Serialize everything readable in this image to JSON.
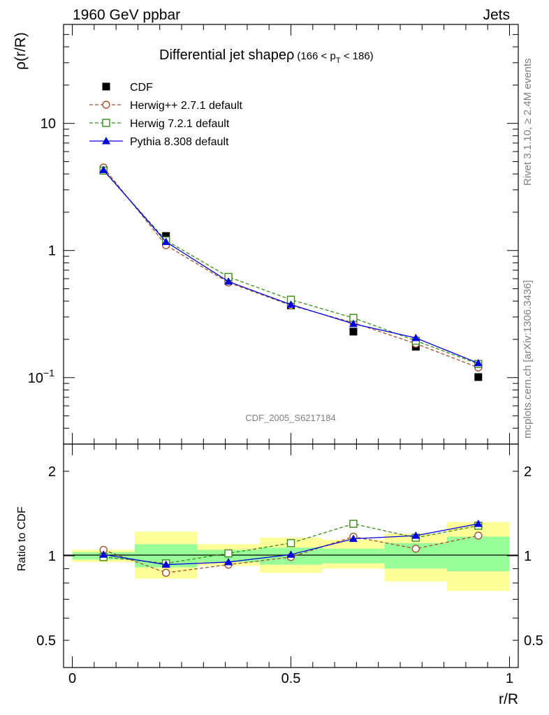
{
  "header": {
    "left": "1960 GeV ppbar",
    "right": "Jets"
  },
  "side_text": {
    "rivet": "Rivet 3.1.10, ≥ 2.4M events",
    "mcplots": "mcplots.cern.ch [arXiv:1306.3436]"
  },
  "chart_data": [
    {
      "type": "line",
      "title": "Differential jet shapeρ",
      "title_suffix": "(166 < p",
      "title_sub": "T",
      "title_suffix_end": " < 186)",
      "ylabel": "ρ(r/R)",
      "yscale": "log",
      "ylim": [
        0.03,
        60
      ],
      "xlim": [
        -0.02,
        1.02
      ],
      "watermark": "CDF_2005_S6217184",
      "yticks": [
        {
          "value": 0.1,
          "base": "10",
          "exp": "−1"
        },
        {
          "value": 1,
          "base": "1",
          "exp": ""
        },
        {
          "value": 10,
          "base": "10",
          "exp": ""
        }
      ],
      "legend_position": "top-left",
      "x": [
        0.0714,
        0.2143,
        0.3571,
        0.5,
        0.6429,
        0.7857,
        0.9286
      ],
      "series": [
        {
          "name": "CDF",
          "color": "#000000",
          "marker": "filled-square",
          "dashed": false,
          "line": false,
          "values": [
            4.3,
            1.3,
            0.6,
            0.37,
            0.23,
            0.175,
            0.101
          ]
        },
        {
          "name": "Herwig++ 2.7.1 default",
          "color": "#a0522d",
          "marker": "open-circle",
          "dashed": true,
          "line": true,
          "values": [
            4.5,
            1.1,
            0.56,
            0.37,
            0.27,
            0.185,
            0.12
          ]
        },
        {
          "name": "Herwig 7.2.1 default",
          "color": "#3a8a1a",
          "marker": "open-square",
          "dashed": true,
          "line": true,
          "values": [
            4.25,
            1.2,
            0.62,
            0.41,
            0.295,
            0.195,
            0.128
          ]
        },
        {
          "name": "Pythia 8.308 default",
          "color": "#0000dd",
          "marker": "filled-triangle",
          "dashed": false,
          "line": true,
          "values": [
            4.3,
            1.17,
            0.57,
            0.375,
            0.265,
            0.205,
            0.13
          ]
        }
      ]
    },
    {
      "type": "line",
      "ylabel": "Ratio to CDF",
      "xlabel": "r/R",
      "yscale": "log",
      "ylim": [
        0.4,
        2.5
      ],
      "xlim": [
        -0.02,
        1.02
      ],
      "yticks": [
        {
          "value": 0.5,
          "label": "0.5"
        },
        {
          "value": 1,
          "label": "1"
        },
        {
          "value": 2,
          "label": "2"
        }
      ],
      "xticks": [
        {
          "value": 0,
          "label": "0"
        },
        {
          "value": 0.5,
          "label": "0.5"
        },
        {
          "value": 1,
          "label": "1"
        }
      ],
      "x": [
        0.0714,
        0.2143,
        0.3571,
        0.5,
        0.6429,
        0.7857,
        0.9286
      ],
      "bin_edges": [
        0,
        0.1429,
        0.2857,
        0.4286,
        0.5714,
        0.7143,
        0.8571,
        1.0
      ],
      "uncertainty_bands": {
        "outer_color": "#ffff99",
        "inner_color": "#99ff99",
        "outer": [
          [
            0.95,
            1.05
          ],
          [
            0.83,
            1.22
          ],
          [
            0.92,
            1.1
          ],
          [
            0.87,
            1.16
          ],
          [
            0.9,
            1.14
          ],
          [
            0.81,
            1.2
          ],
          [
            0.75,
            1.32
          ]
        ],
        "inner": [
          [
            0.97,
            1.03
          ],
          [
            0.91,
            1.1
          ],
          [
            0.95,
            1.05
          ],
          [
            0.93,
            1.07
          ],
          [
            0.94,
            1.06
          ],
          [
            0.9,
            1.11
          ],
          [
            0.88,
            1.17
          ]
        ]
      },
      "series": [
        {
          "name": "Herwig++ 2.7.1 default",
          "color": "#a0522d",
          "marker": "open-circle",
          "dashed": true,
          "line": true,
          "values": [
            1.05,
            0.87,
            0.93,
            0.99,
            1.17,
            1.06,
            1.18
          ]
        },
        {
          "name": "Herwig 7.2.1 default",
          "color": "#3a8a1a",
          "marker": "open-square",
          "dashed": true,
          "line": true,
          "values": [
            0.99,
            0.94,
            1.02,
            1.11,
            1.3,
            1.16,
            1.28
          ]
        },
        {
          "name": "Pythia 8.308 default",
          "color": "#0000dd",
          "marker": "filled-triangle",
          "dashed": false,
          "line": true,
          "values": [
            1.01,
            0.93,
            0.95,
            1.01,
            1.15,
            1.18,
            1.3
          ]
        }
      ]
    }
  ]
}
